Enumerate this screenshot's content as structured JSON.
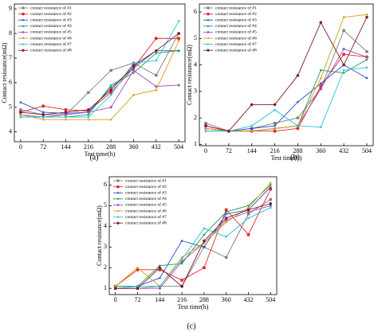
{
  "chart_data": [
    {
      "type": "line",
      "caption": "(a)",
      "xlabel": "Test  time(h)",
      "ylabel": "Contact resistance(mΩ)",
      "x": [
        0,
        72,
        144,
        216,
        288,
        360,
        432,
        504
      ],
      "xlim": [
        -20,
        524
      ],
      "xticks": [
        0,
        72,
        144,
        216,
        288,
        360,
        432,
        504
      ],
      "ylim": [
        3.6,
        9.2
      ],
      "yticks": [
        4,
        5,
        6,
        7,
        8,
        9
      ],
      "legend": "upper left",
      "series": [
        {
          "name": "contact resistance of #1",
          "color": "#7f7f7f",
          "marker": "square",
          "values": [
            4.9,
            4.7,
            4.7,
            5.6,
            6.5,
            6.8,
            6.3,
            8.0
          ]
        },
        {
          "name": "contact resistance of #2",
          "color": "#e8262a",
          "marker": "circle",
          "values": [
            4.8,
            5.05,
            4.9,
            4.85,
            5.6,
            6.6,
            7.8,
            7.8
          ]
        },
        {
          "name": "contact resistance of #3",
          "color": "#2b4fc8",
          "marker": "triangle-up",
          "values": [
            5.2,
            4.8,
            4.75,
            4.8,
            5.8,
            6.6,
            7.3,
            7.3
          ]
        },
        {
          "name": "contact resistance of #4",
          "color": "#1f9a5a",
          "marker": "triangle-down",
          "values": [
            4.6,
            4.6,
            4.6,
            4.7,
            5.9,
            6.4,
            7.2,
            7.3
          ]
        },
        {
          "name": "contact resistance of #5",
          "color": "#a050c0",
          "marker": "diamond",
          "values": [
            4.7,
            4.6,
            4.7,
            4.8,
            5.0,
            6.5,
            5.85,
            5.9
          ]
        },
        {
          "name": "contact resistance of #6",
          "color": "#d4a017",
          "marker": "triangle-left",
          "values": [
            4.7,
            4.5,
            4.5,
            4.5,
            4.5,
            5.5,
            5.7,
            7.7
          ]
        },
        {
          "name": "contact resistance of #7",
          "color": "#29c4d6",
          "marker": "triangle-right",
          "values": [
            4.6,
            4.6,
            4.6,
            4.6,
            5.5,
            6.8,
            6.9,
            8.5
          ]
        },
        {
          "name": "contact resistance of #8",
          "color": "#7a1f2b",
          "marker": "hexagon",
          "values": [
            4.8,
            4.7,
            4.8,
            4.9,
            5.7,
            6.7,
            7.3,
            8.0
          ]
        }
      ]
    },
    {
      "type": "line",
      "caption": "(b)",
      "xlabel": "Test  time(h)",
      "ylabel": "Contact resistance(mΩ)",
      "x": [
        0,
        72,
        144,
        216,
        288,
        360,
        432,
        504
      ],
      "xlim": [
        -20,
        524
      ],
      "xticks": [
        0,
        72,
        144,
        216,
        288,
        360,
        432,
        504
      ],
      "ylim": [
        0.95,
        6.3
      ],
      "yticks": [
        1,
        2,
        3,
        4,
        5,
        6
      ],
      "legend": "upper left",
      "series": [
        {
          "name": "contact resistance of #1",
          "color": "#7f7f7f",
          "marker": "square",
          "values": [
            1.8,
            1.5,
            1.6,
            1.8,
            2.0,
            3.1,
            5.3,
            4.5
          ]
        },
        {
          "name": "contact resistance of #2",
          "color": "#e8262a",
          "marker": "circle",
          "values": [
            1.7,
            1.5,
            1.5,
            1.5,
            1.6,
            3.2,
            4.4,
            4.3
          ]
        },
        {
          "name": "contact resistance of #3",
          "color": "#2b4fc8",
          "marker": "triangle-up",
          "values": [
            1.6,
            1.5,
            1.6,
            1.7,
            2.6,
            3.3,
            4.0,
            3.5
          ]
        },
        {
          "name": "contact resistance of #4",
          "color": "#1f9a5a",
          "marker": "triangle-down",
          "values": [
            1.5,
            1.5,
            1.5,
            1.6,
            1.7,
            3.8,
            3.7,
            4.2
          ]
        },
        {
          "name": "contact resistance of #5",
          "color": "#a050c0",
          "marker": "diamond",
          "values": [
            1.6,
            1.5,
            1.5,
            1.6,
            1.7,
            3.1,
            4.6,
            4.3
          ]
        },
        {
          "name": "contact resistance of #6",
          "color": "#d4a017",
          "marker": "triangle-left",
          "values": [
            1.6,
            1.5,
            1.5,
            1.6,
            1.7,
            3.5,
            5.8,
            5.9
          ]
        },
        {
          "name": "contact resistance of #7",
          "color": "#29c4d6",
          "marker": "triangle-right",
          "values": [
            1.5,
            1.5,
            1.7,
            2.3,
            1.7,
            1.65,
            3.8,
            3.9
          ]
        },
        {
          "name": "contact resistance of #8",
          "color": "#7a1f2b",
          "marker": "hexagon",
          "values": [
            1.7,
            1.5,
            2.5,
            2.5,
            3.6,
            5.6,
            4.0,
            5.8
          ]
        }
      ]
    },
    {
      "type": "line",
      "caption": "(c)",
      "xlabel": "Test  time(h)",
      "ylabel": "Contact resistance(mΩ)",
      "x": [
        0,
        72,
        144,
        216,
        288,
        360,
        432,
        504
      ],
      "xlim": [
        -20,
        524
      ],
      "xticks": [
        0,
        72,
        144,
        216,
        288,
        360,
        432,
        504
      ],
      "ylim": [
        0.7,
        6.4
      ],
      "yticks": [
        1,
        2,
        3,
        4,
        5,
        6
      ],
      "legend": "upper left",
      "series": [
        {
          "name": "contact resistance of #1",
          "color": "#7f7f7f",
          "marker": "square",
          "values": [
            1.0,
            1.0,
            1.1,
            1.1,
            3.0,
            2.5,
            4.6,
            5.3
          ]
        },
        {
          "name": "contact resistance of #2",
          "color": "#e8262a",
          "marker": "circle",
          "values": [
            1.1,
            1.9,
            1.9,
            1.4,
            2.0,
            4.8,
            3.6,
            5.8
          ]
        },
        {
          "name": "contact resistance of #3",
          "color": "#2b4fc8",
          "marker": "triangle-up",
          "values": [
            1.1,
            1.1,
            1.5,
            3.3,
            3.0,
            4.6,
            4.8,
            5.9
          ]
        },
        {
          "name": "contact resistance of #4",
          "color": "#1f9a5a",
          "marker": "triangle-down",
          "values": [
            1.1,
            1.1,
            2.1,
            2.2,
            3.6,
            4.7,
            5.0,
            6.0
          ]
        },
        {
          "name": "contact resistance of #5",
          "color": "#a050c0",
          "marker": "diamond",
          "values": [
            1.0,
            1.0,
            1.0,
            2.3,
            3.2,
            4.3,
            4.7,
            5.0
          ]
        },
        {
          "name": "contact resistance of #6",
          "color": "#d4a017",
          "marker": "triangle-left",
          "values": [
            1.1,
            2.0,
            1.1,
            2.5,
            3.2,
            4.2,
            4.9,
            6.1
          ]
        },
        {
          "name": "contact resistance of #7",
          "color": "#29c4d6",
          "marker": "triangle-right",
          "values": [
            1.0,
            1.1,
            1.1,
            2.4,
            3.9,
            3.5,
            4.4,
            4.9
          ]
        },
        {
          "name": "contact resistance of #8",
          "color": "#7a1f2b",
          "marker": "hexagon",
          "values": [
            1.0,
            1.0,
            2.0,
            1.1,
            3.3,
            4.4,
            4.8,
            5.1
          ]
        }
      ]
    }
  ]
}
